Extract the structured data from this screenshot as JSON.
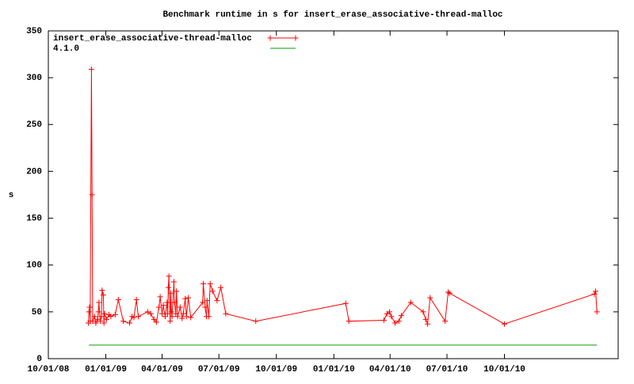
{
  "chart_data": {
    "type": "line",
    "title": "Benchmark runtime in s for insert_erase_associative-thread-malloc",
    "ylabel": "s",
    "xlim": [
      "10/01/08",
      "04/01/11"
    ],
    "xticks": [
      "10/01/08",
      "01/01/09",
      "04/01/09",
      "07/01/09",
      "10/01/09",
      "01/01/10",
      "04/01/10",
      "07/01/10",
      "10/01/10"
    ],
    "ylim": [
      0,
      350
    ],
    "yticks": [
      0,
      50,
      100,
      150,
      200,
      250,
      300,
      350
    ],
    "legend": "top left",
    "series": [
      {
        "name": "insert_erase_associative-thread-malloc",
        "color": "#ff0000",
        "markers": true,
        "x": [
          "12/04/08",
          "12/05/08",
          "12/06/08",
          "12/07/08",
          "12/09/08",
          "12/10/08",
          "12/11/08",
          "12/14/08",
          "12/16/08",
          "12/19/08",
          "12/20/08",
          "12/21/08",
          "12/23/08",
          "12/25/08",
          "12/26/08",
          "12/28/08",
          "12/29/08",
          "12/30/08",
          "01/02/09",
          "01/06/09",
          "01/09/09",
          "01/16/09",
          "01/21/09",
          "01/29/09",
          "02/08/09",
          "02/12/09",
          "02/15/09",
          "02/19/09",
          "02/22/09",
          "03/09/09",
          "03/14/09",
          "03/19/09",
          "03/23/09",
          "03/27/09",
          "03/29/09",
          "04/01/09",
          "04/03/09",
          "04/06/09",
          "04/09/09",
          "04/10/09",
          "04/11/09",
          "04/12/09",
          "04/14/09",
          "04/15/09",
          "04/16/09",
          "04/17/09",
          "04/20/09",
          "04/21/09",
          "04/23/09",
          "04/24/09",
          "04/26/09",
          "04/30/09",
          "05/03/09",
          "05/05/09",
          "05/08/09",
          "05/10/09",
          "05/13/09",
          "05/17/09",
          "06/05/09",
          "06/06/09",
          "06/09/09",
          "06/11/09",
          "06/12/09",
          "06/15/09",
          "06/17/09",
          "06/21/09",
          "06/28/09",
          "07/04/09",
          "07/12/09",
          "08/29/09",
          "01/20/10",
          "01/25/10",
          "03/22/10",
          "03/27/10",
          "03/31/10",
          "04/03/10",
          "04/09/10",
          "04/15/10",
          "04/19/10",
          "05/04/10",
          "05/24/10",
          "05/28/10",
          "05/31/10",
          "06/04/10",
          "06/28/10",
          "07/03/10",
          "07/05/10",
          "10/01/10",
          "02/22/11",
          "02/24/11",
          "02/26/11"
        ],
        "values": [
          38,
          50,
          55,
          40,
          309,
          175,
          40,
          45,
          38,
          42,
          50,
          60,
          40,
          45,
          73,
          68,
          38,
          48,
          42,
          47,
          45,
          47,
          63,
          40,
          38,
          45,
          44,
          63,
          45,
          50,
          48,
          42,
          39,
          55,
          66,
          48,
          57,
          45,
          60,
          48,
          76,
          88,
          40,
          70,
          50,
          45,
          82,
          60,
          48,
          72,
          45,
          55,
          43,
          48,
          64,
          45,
          65,
          44,
          60,
          80,
          55,
          45,
          62,
          45,
          80,
          72,
          62,
          76,
          48,
          40,
          59,
          40,
          41,
          48,
          50,
          45,
          38,
          40,
          46,
          60,
          50,
          42,
          37,
          65,
          40,
          71,
          70,
          37,
          69,
          72,
          50
        ]
      },
      {
        "name": "4.1.0",
        "color": "#00a000",
        "markers": false,
        "x": [
          "12/05/08",
          "02/26/11"
        ],
        "values": [
          14.5,
          14.5
        ]
      }
    ]
  }
}
